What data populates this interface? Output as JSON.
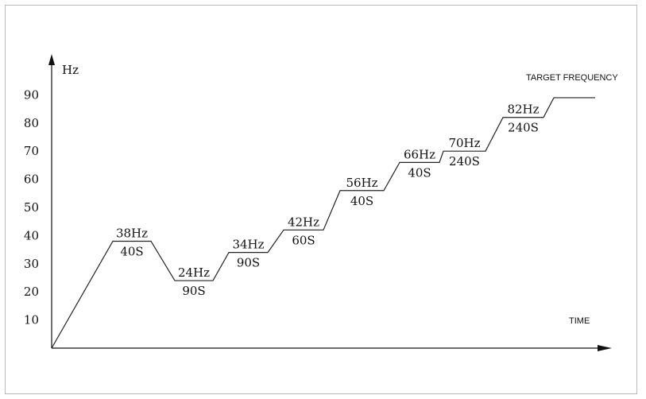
{
  "chart_data": {
    "type": "line",
    "ylabel": "Hz",
    "xlabel": "TIME",
    "target_label": "TARGET FREQUENCY",
    "yticks": [
      10,
      20,
      30,
      40,
      50,
      60,
      70,
      80,
      90
    ],
    "ylim": [
      0,
      90
    ],
    "plateaus": [
      {
        "freq": 38,
        "freq_label": "38Hz",
        "duration_label": "40S"
      },
      {
        "freq": 24,
        "freq_label": "24Hz",
        "duration_label": "90S"
      },
      {
        "freq": 34,
        "freq_label": "34Hz",
        "duration_label": "90S"
      },
      {
        "freq": 42,
        "freq_label": "42Hz",
        "duration_label": "60S"
      },
      {
        "freq": 56,
        "freq_label": "56Hz",
        "duration_label": "40S"
      },
      {
        "freq": 66,
        "freq_label": "66Hz",
        "duration_label": "40S"
      },
      {
        "freq": 70,
        "freq_label": "70Hz",
        "duration_label": "240S"
      },
      {
        "freq": 82,
        "freq_label": "82Hz",
        "duration_label": "240S"
      }
    ],
    "target_freq": 89,
    "line_color": "#222222"
  }
}
